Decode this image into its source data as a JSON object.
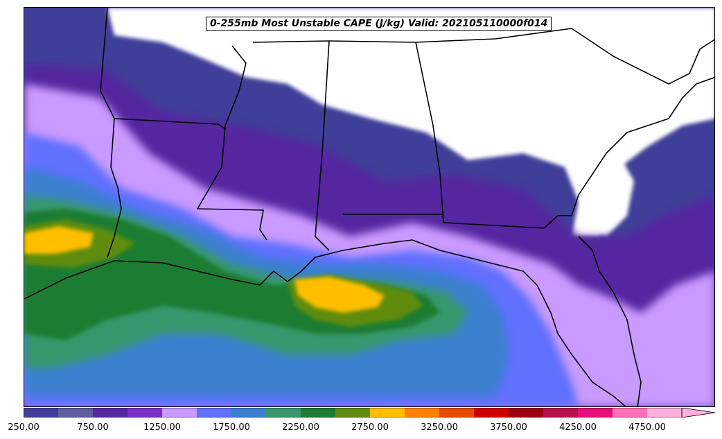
{
  "title": "0-255mb Most Unstable CAPE (J/kg) Valid: 202105110000f014",
  "colorbar": {
    "min": 250,
    "max": 5000,
    "step": 250,
    "extend": "max",
    "colors": [
      "#3f3f99",
      "#5f5f9f",
      "#55289f",
      "#7a30c8",
      "#c99aff",
      "#6070ff",
      "#3a80cf",
      "#38966c",
      "#1e7d30",
      "#5e8c10",
      "#ffbf00",
      "#ff8000",
      "#e84a00",
      "#d00000",
      "#9a0012",
      "#b8104a",
      "#e8107a",
      "#ff70b8",
      "#ffb0dc"
    ],
    "tick_labels": [
      "250.00",
      "750.00",
      "1250.00",
      "1750.00",
      "2250.00",
      "2750.00",
      "3250.00",
      "3750.00",
      "4250.00",
      "4750.00"
    ]
  },
  "map": {
    "region": "US Gulf Coast / Southeast and Gulf of Mexico",
    "background_no_data": "#ffffff",
    "boundary_color": "#000000"
  }
}
